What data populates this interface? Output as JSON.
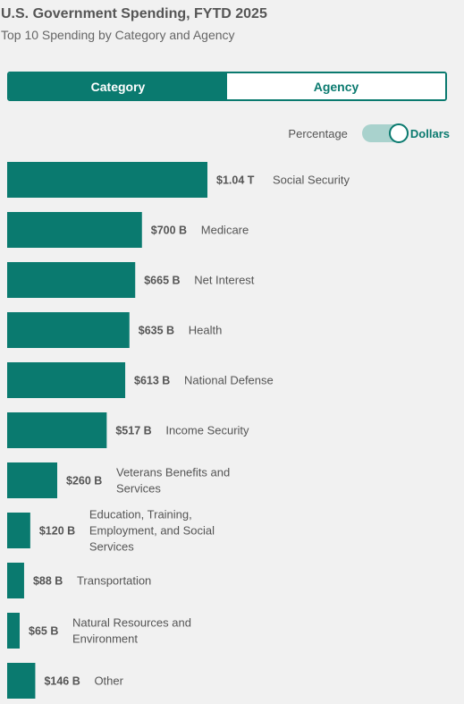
{
  "header": {
    "title": "U.S. Government Spending, FYTD 2025",
    "subtitle": "Top 10 Spending by Category and Agency"
  },
  "tabs": [
    {
      "label": "Category",
      "active": true
    },
    {
      "label": "Agency",
      "active": false
    }
  ],
  "toggle": {
    "left_label": "Percentage",
    "right_label": "Dollars",
    "selected": "Dollars"
  },
  "colors": {
    "accent": "#0a7a6f",
    "toggle_track": "#a9d2cd"
  },
  "chart_data": {
    "type": "bar",
    "orientation": "horizontal",
    "unit": "billions of dollars",
    "categories": [
      "Social Security",
      "Medicare",
      "Net Interest",
      "Health",
      "National Defense",
      "Income Security",
      "Veterans Benefits and Services",
      "Education, Training, Employment, and Social Services",
      "Transportation",
      "Natural Resources and Environment",
      "Other"
    ],
    "values": [
      1040,
      700,
      665,
      635,
      613,
      517,
      260,
      120,
      88,
      65,
      146
    ],
    "value_labels": [
      "$1.04 T",
      "$700 B",
      "$665 B",
      "$635 B",
      "$613 B",
      "$517 B",
      "$260 B",
      "$120 B",
      "$88 B",
      "$65 B",
      "$146 B"
    ],
    "grid": false,
    "legend": "none"
  }
}
